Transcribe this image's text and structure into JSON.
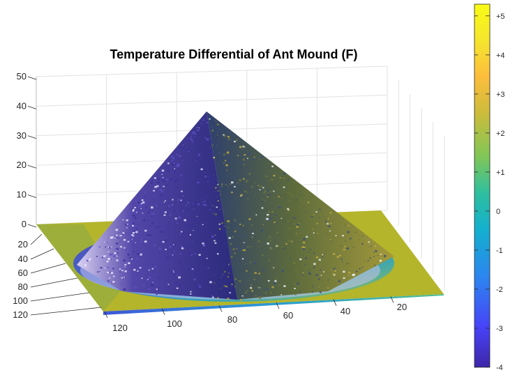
{
  "chart_data": {
    "type": "surface",
    "title": "Temperature Differential of Ant Mound (F)",
    "xlabel": "",
    "ylabel": "",
    "zlabel": "",
    "x_ticks": [
      "120",
      "100",
      "80",
      "60",
      "40",
      "20"
    ],
    "y_ticks": [
      "20",
      "40",
      "60",
      "80",
      "100",
      "120"
    ],
    "z_ticks": [
      "0",
      "10",
      "20",
      "30",
      "40",
      "50"
    ],
    "xlim": [
      0,
      130
    ],
    "ylim": [
      0,
      125
    ],
    "zlim": [
      0,
      50
    ],
    "grid": true,
    "surface": {
      "shape": "cone",
      "peak_height": 42,
      "base_radius": 55,
      "center": [
        65,
        62
      ],
      "roughness": "noisy"
    },
    "colorbar": {
      "ticks": [
        "+5",
        "+4",
        "+3",
        "+2",
        "+1",
        "0",
        "-1",
        "-2",
        "-3",
        "-4"
      ],
      "range": [
        -4,
        5.3
      ],
      "colormap": "parula",
      "colors": [
        "#3e26a8",
        "#4743f8",
        "#2c86ef",
        "#13b0ce",
        "#2fbf9f",
        "#80c657",
        "#ccbc3b",
        "#fdbd3c",
        "#f5e52e",
        "#f9fb15"
      ]
    }
  }
}
